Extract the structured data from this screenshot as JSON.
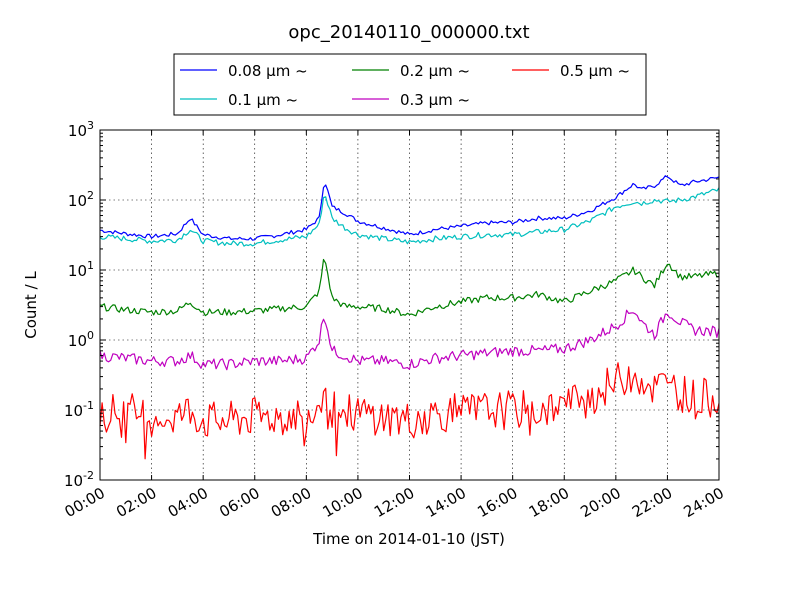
{
  "chart_data": {
    "type": "line",
    "title": "opc_20140110_000000.txt",
    "xlabel": "Time on 2014-01-10 (JST)",
    "ylabel": "Count / L",
    "xlim_hours": [
      0,
      24
    ],
    "ylim": [
      0.01,
      1000
    ],
    "yscale": "log",
    "grid": true,
    "legend_position": "top-center",
    "x_tick_labels": [
      "00:00",
      "02:00",
      "04:00",
      "06:00",
      "08:00",
      "10:00",
      "12:00",
      "14:00",
      "16:00",
      "18:00",
      "20:00",
      "22:00",
      "24:00"
    ],
    "y_ticks": [
      {
        "base": "10",
        "exp": "-2"
      },
      {
        "base": "10",
        "exp": "-1"
      },
      {
        "base": "10",
        "exp": "0"
      },
      {
        "base": "10",
        "exp": "1"
      },
      {
        "base": "10",
        "exp": "2"
      },
      {
        "base": "10",
        "exp": "3"
      }
    ],
    "x_hours": [
      0,
      1,
      2,
      3,
      3.5,
      4,
      5,
      6,
      7,
      8,
      8.5,
      8.7,
      9,
      9.5,
      10,
      11,
      12,
      13,
      14,
      15,
      16,
      17,
      18,
      19,
      20,
      20.7,
      21,
      21.5,
      22,
      22.5,
      23,
      24
    ],
    "series": [
      {
        "name": "0.08 μm ~",
        "color": "#0000ff",
        "values": [
          37,
          33,
          30,
          33,
          55,
          32,
          28,
          28,
          32,
          38,
          55,
          200,
          80,
          65,
          50,
          40,
          32,
          38,
          42,
          47,
          48,
          55,
          55,
          70,
          110,
          170,
          140,
          160,
          220,
          160,
          180,
          210
        ]
      },
      {
        "name": "0.1 μm ~",
        "color": "#00bfbf",
        "values": [
          30,
          28,
          26,
          27,
          38,
          26,
          24,
          24,
          27,
          30,
          45,
          130,
          55,
          40,
          32,
          28,
          25,
          28,
          30,
          32,
          32,
          35,
          38,
          50,
          80,
          95,
          90,
          100,
          95,
          100,
          110,
          140
        ]
      },
      {
        "name": "0.2 μm ~",
        "color": "#008000",
        "values": [
          3.0,
          2.7,
          2.5,
          2.6,
          3.5,
          2.5,
          2.5,
          2.6,
          2.8,
          3.0,
          5,
          16,
          4,
          3,
          3,
          2.8,
          2.3,
          3,
          3.5,
          4,
          4,
          4.5,
          3.5,
          5,
          7,
          10,
          8,
          6,
          13,
          8,
          8,
          9
        ]
      },
      {
        "name": "0.3 μm ~",
        "color": "#bf00bf",
        "values": [
          0.6,
          0.55,
          0.5,
          0.5,
          0.6,
          0.45,
          0.45,
          0.5,
          0.5,
          0.55,
          1.0,
          2.5,
          0.7,
          0.6,
          0.5,
          0.5,
          0.45,
          0.55,
          0.6,
          0.65,
          0.7,
          0.7,
          0.75,
          1.0,
          1.6,
          2.8,
          1.8,
          1.2,
          2.6,
          1.8,
          1.4,
          1.3
        ]
      },
      {
        "name": "0.5 μm ~",
        "color": "#ff0000",
        "values": [
          0.09,
          0.1,
          0.08,
          0.08,
          0.1,
          0.07,
          0.07,
          0.08,
          0.08,
          0.09,
          0.12,
          0.3,
          0.1,
          0.09,
          0.09,
          0.08,
          0.07,
          0.09,
          0.09,
          0.1,
          0.1,
          0.1,
          0.12,
          0.15,
          0.25,
          0.35,
          0.28,
          0.2,
          0.25,
          0.18,
          0.15,
          0.15
        ]
      }
    ]
  }
}
